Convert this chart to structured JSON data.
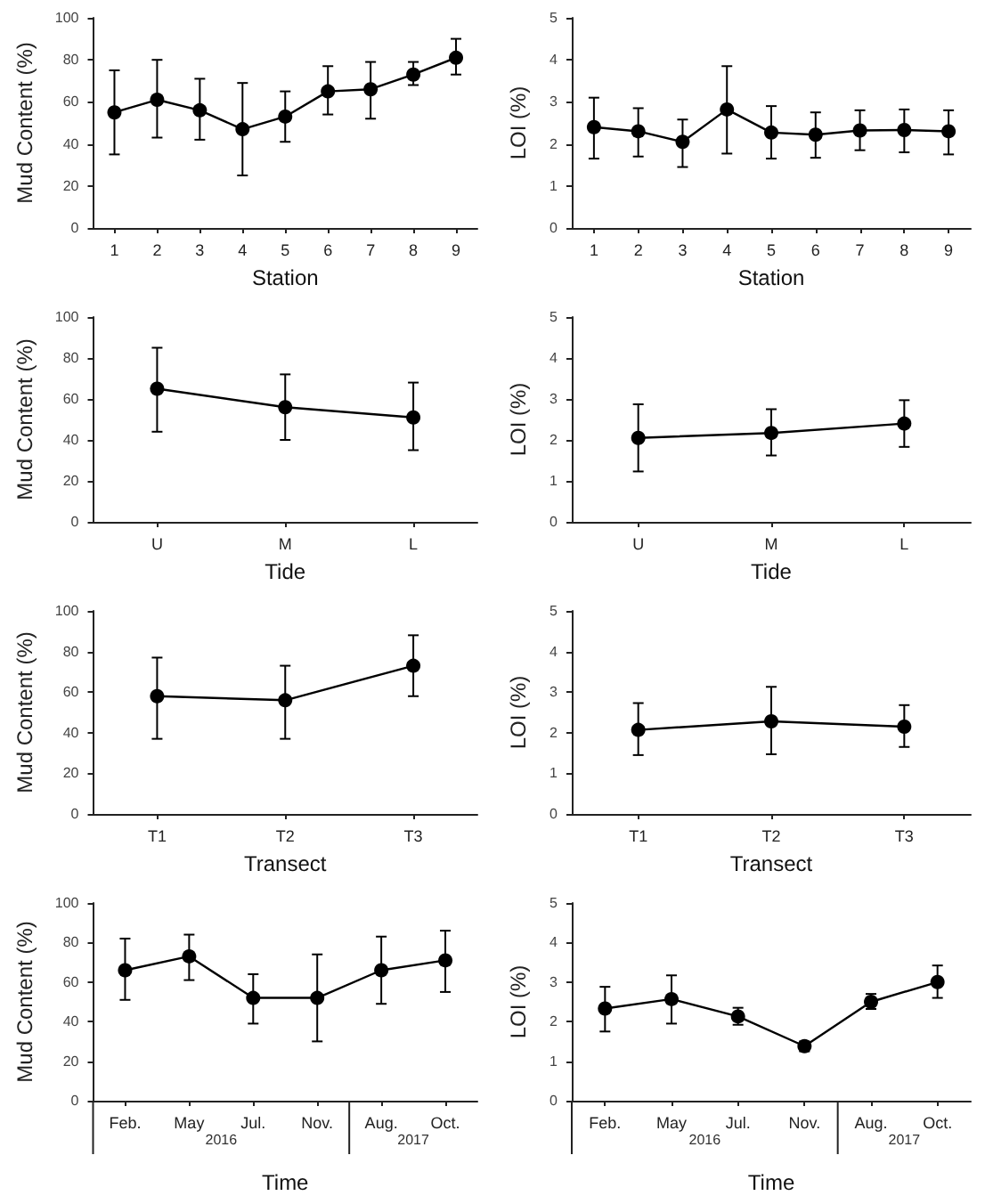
{
  "chart_data": [
    {
      "type": "line",
      "xlabel": "Station",
      "ylabel": "Mud Content (%)",
      "categories": [
        "1",
        "2",
        "3",
        "4",
        "5",
        "6",
        "7",
        "8",
        "9"
      ],
      "ylim": [
        0,
        100
      ],
      "yticks": [
        0,
        20,
        40,
        60,
        80,
        100
      ],
      "grid": false,
      "marker": "circle",
      "line_style": "solid",
      "series": [
        {
          "color": "#000000",
          "values": [
            55,
            61,
            56,
            47,
            53,
            65,
            66,
            73,
            81
          ],
          "errors": [
            [
              35,
              75
            ],
            [
              43,
              80
            ],
            [
              42,
              71
            ],
            [
              25,
              69
            ],
            [
              41,
              65
            ],
            [
              54,
              77
            ],
            [
              52,
              79
            ],
            [
              68,
              79
            ],
            [
              73,
              90
            ]
          ]
        }
      ]
    },
    {
      "type": "line",
      "xlabel": "Station",
      "ylabel": "LOI (%)",
      "categories": [
        "1",
        "2",
        "3",
        "4",
        "5",
        "6",
        "7",
        "8",
        "9"
      ],
      "ylim": [
        0,
        5
      ],
      "yticks": [
        0,
        1,
        2,
        3,
        4,
        5
      ],
      "grid": false,
      "marker": "circle",
      "line_style": "solid",
      "series": [
        {
          "color": "#000000",
          "values": [
            2.4,
            2.3,
            2.05,
            2.82,
            2.27,
            2.22,
            2.32,
            2.33,
            2.3
          ],
          "errors": [
            [
              1.65,
              3.1
            ],
            [
              1.7,
              2.85
            ],
            [
              1.45,
              2.58
            ],
            [
              1.77,
              3.85
            ],
            [
              1.65,
              2.9
            ],
            [
              1.67,
              2.75
            ],
            [
              1.85,
              2.8
            ],
            [
              1.8,
              2.82
            ],
            [
              1.75,
              2.8
            ]
          ]
        }
      ]
    },
    {
      "type": "line",
      "xlabel": "Tide",
      "ylabel": "Mud Content (%)",
      "categories": [
        "U",
        "M",
        "L"
      ],
      "ylim": [
        0,
        100
      ],
      "yticks": [
        0,
        20,
        40,
        60,
        80,
        100
      ],
      "grid": false,
      "marker": "circle",
      "line_style": "solid",
      "series": [
        {
          "color": "#000000",
          "values": [
            65,
            56,
            51
          ],
          "errors": [
            [
              44,
              85
            ],
            [
              40,
              72
            ],
            [
              35,
              68
            ]
          ]
        }
      ]
    },
    {
      "type": "line",
      "xlabel": "Tide",
      "ylabel": "LOI (%)",
      "categories": [
        "U",
        "M",
        "L"
      ],
      "ylim": [
        0,
        5
      ],
      "yticks": [
        0,
        1,
        2,
        3,
        4,
        5
      ],
      "grid": false,
      "marker": "circle",
      "line_style": "solid",
      "series": [
        {
          "color": "#000000",
          "values": [
            2.05,
            2.17,
            2.4
          ],
          "errors": [
            [
              1.23,
              2.87
            ],
            [
              1.62,
              2.75
            ],
            [
              1.83,
              2.97
            ]
          ]
        }
      ]
    },
    {
      "type": "line",
      "xlabel": "Transect",
      "ylabel": "Mud Content (%)",
      "categories": [
        "T1",
        "T2",
        "T3"
      ],
      "ylim": [
        0,
        100
      ],
      "yticks": [
        0,
        20,
        40,
        60,
        80,
        100
      ],
      "grid": false,
      "marker": "circle",
      "line_style": "solid",
      "series": [
        {
          "color": "#000000",
          "values": [
            58,
            56,
            73
          ],
          "errors": [
            [
              37,
              77
            ],
            [
              37,
              73
            ],
            [
              58,
              88
            ]
          ]
        }
      ]
    },
    {
      "type": "line",
      "xlabel": "Transect",
      "ylabel": "LOI (%)",
      "categories": [
        "T1",
        "T2",
        "T3"
      ],
      "ylim": [
        0,
        5
      ],
      "yticks": [
        0,
        1,
        2,
        3,
        4,
        5
      ],
      "grid": false,
      "marker": "circle",
      "line_style": "solid",
      "series": [
        {
          "color": "#000000",
          "values": [
            2.07,
            2.28,
            2.15
          ],
          "errors": [
            [
              1.45,
              2.73
            ],
            [
              1.47,
              3.13
            ],
            [
              1.65,
              2.68
            ]
          ]
        }
      ]
    },
    {
      "type": "line",
      "xlabel": "Time",
      "ylabel": "Mud Content (%)",
      "categories": [
        "Feb.",
        "May",
        "Jul.",
        "Nov.",
        "Aug.",
        "Oct."
      ],
      "ylim": [
        0,
        100
      ],
      "yticks": [
        0,
        20,
        40,
        60,
        80,
        100
      ],
      "grid": false,
      "marker": "circle",
      "line_style": "solid",
      "annotations": [
        "2016",
        "2017"
      ],
      "series": [
        {
          "color": "#000000",
          "values": [
            66,
            73,
            52,
            52,
            66,
            71
          ],
          "errors": [
            [
              51,
              82
            ],
            [
              61,
              84
            ],
            [
              39,
              64
            ],
            [
              30,
              74
            ],
            [
              49,
              83
            ],
            [
              55,
              86
            ]
          ]
        }
      ]
    },
    {
      "type": "line",
      "xlabel": "Time",
      "ylabel": "LOI (%)",
      "categories": [
        "Feb.",
        "May",
        "Jul.",
        "Nov.",
        "Aug.",
        "Oct."
      ],
      "ylim": [
        0,
        5
      ],
      "yticks": [
        0,
        1,
        2,
        3,
        4,
        5
      ],
      "grid": false,
      "marker": "circle",
      "line_style": "solid",
      "annotations": [
        "2016",
        "2017"
      ],
      "series": [
        {
          "color": "#000000",
          "values": [
            2.33,
            2.57,
            2.13,
            1.38,
            2.5,
            3.0
          ],
          "errors": [
            [
              1.75,
              2.88
            ],
            [
              1.95,
              3.17
            ],
            [
              1.92,
              2.35
            ],
            [
              1.25,
              1.5
            ],
            [
              2.32,
              2.7
            ],
            [
              2.6,
              3.42
            ]
          ]
        }
      ]
    }
  ]
}
